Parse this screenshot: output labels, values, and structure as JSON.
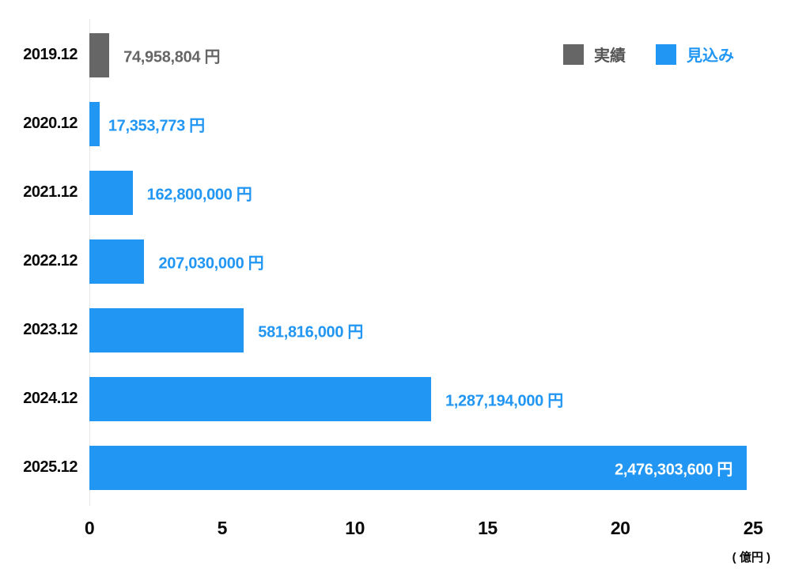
{
  "chart_data": {
    "type": "bar",
    "orientation": "horizontal",
    "title": "",
    "xlabel_unit": "( 億円 )",
    "xlim": [
      0,
      25
    ],
    "x_ticks": [
      0,
      5,
      10,
      15,
      20,
      25
    ],
    "grid": false,
    "legend_position": "top-right",
    "legend": [
      {
        "label": "実績",
        "series": "actual",
        "color": "#666666",
        "text_color": "#555555"
      },
      {
        "label": "見込み",
        "series": "forecast",
        "color": "#2196f3",
        "text_color": "#2196f3"
      }
    ],
    "colors": {
      "actual": "#666666",
      "actual_text": "#666666",
      "forecast": "#2196f3",
      "forecast_text": "#2196f3",
      "inside_label_text": "#ffffff",
      "axis_text": "#0a0a0a",
      "background": "#ffffff"
    },
    "rows": [
      {
        "year": "2019.12",
        "series": "actual",
        "value_label": "74,958,804 円",
        "value_yen": 74958804,
        "value_oku": 0.74958804
      },
      {
        "year": "2020.12",
        "series": "forecast",
        "value_label": "17,353,773 円",
        "value_yen": 17353773,
        "value_oku": 0.17353773
      },
      {
        "year": "2021.12",
        "series": "forecast",
        "value_label": "162,800,000 円",
        "value_yen": 162800000,
        "value_oku": 1.628
      },
      {
        "year": "2022.12",
        "series": "forecast",
        "value_label": "207,030,000 円",
        "value_yen": 207030000,
        "value_oku": 2.0703
      },
      {
        "year": "2023.12",
        "series": "forecast",
        "value_label": "581,816,000 円",
        "value_yen": 581816000,
        "value_oku": 5.81816
      },
      {
        "year": "2024.12",
        "series": "forecast",
        "value_label": "1,287,194,000 円",
        "value_yen": 1287194000,
        "value_oku": 12.87194
      },
      {
        "year": "2025.12",
        "series": "forecast",
        "value_label": "2,476,303,600 円",
        "value_yen": 2476303600,
        "value_oku": 24.763036
      }
    ]
  }
}
